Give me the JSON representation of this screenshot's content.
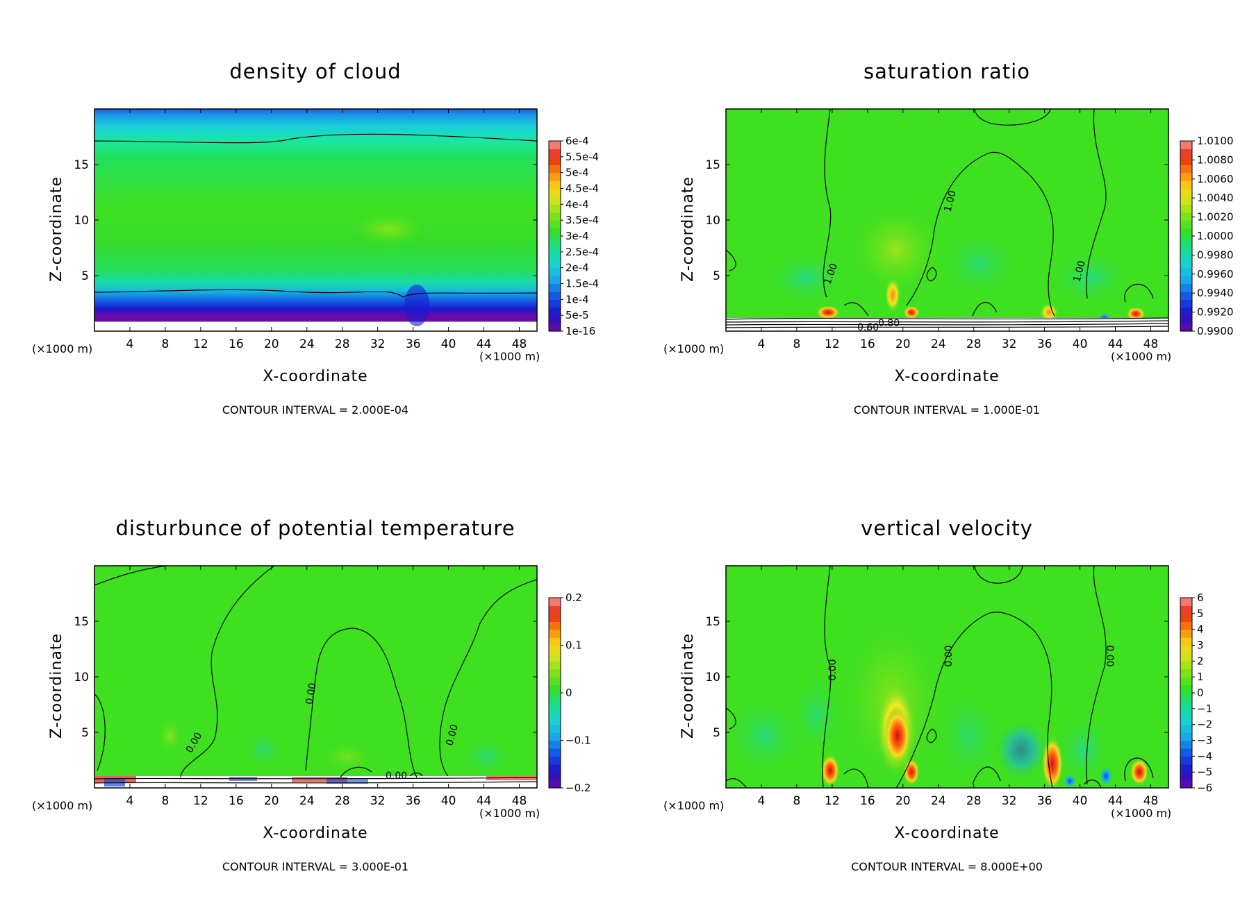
{
  "figure": {
    "panels": [
      {
        "title": "density of cloud",
        "xlabel": "X-coordinate",
        "ylabel": "Z-coordinate",
        "x_unit_left": "(×1000 m)",
        "x_unit_right": "(×1000 m)",
        "contour_interval": "CONTOUR INTERVAL = 2.000E-04",
        "colorbar_labels": [
          "6e-4",
          "5.5e-4",
          "5e-4",
          "4.5e-4",
          "4e-4",
          "3.5e-4",
          "3e-4",
          "2.5e-4",
          "2e-4",
          "1.5e-4",
          "1e-4",
          "5e-5",
          "1e-16"
        ],
        "contour_labels": []
      },
      {
        "title": "saturation ratio",
        "xlabel": "X-coordinate",
        "ylabel": "Z-coordinate",
        "x_unit_left": "(×1000 m)",
        "x_unit_right": "(×1000 m)",
        "contour_interval": "CONTOUR INTERVAL = 1.000E-01",
        "colorbar_labels": [
          "1.0100",
          "1.0080",
          "1.0060",
          "1.0040",
          "1.0020",
          "1.0000",
          "0.9980",
          "0.9960",
          "0.9940",
          "0.9920",
          "0.9900"
        ],
        "contour_labels": [
          "1.00",
          "1.00",
          "1.00",
          "0.60",
          "0.80"
        ]
      },
      {
        "title": "disturbunce of potential temperature",
        "xlabel": "X-coordinate",
        "ylabel": "Z-coordinate",
        "x_unit_left": "(×1000 m)",
        "x_unit_right": "(×1000 m)",
        "contour_interval": "CONTOUR INTERVAL = 3.000E-01",
        "colorbar_labels": [
          "0.2",
          "0.1",
          "0",
          "−0.1",
          "−0.2"
        ],
        "contour_labels": [
          "0.00",
          "0.00",
          "0.00",
          "0.00"
        ]
      },
      {
        "title": "vertical velocity",
        "xlabel": "X-coordinate",
        "ylabel": "Z-coordinate",
        "x_unit_left": "(×1000 m)",
        "x_unit_right": "(×1000 m)",
        "contour_interval": "CONTOUR INTERVAL = 8.000E+00",
        "colorbar_labels": [
          "6",
          "5",
          "4",
          "3",
          "2",
          "1",
          "0",
          "−1",
          "−2",
          "−3",
          "−4",
          "−5",
          "−6"
        ],
        "contour_labels": [
          "0.00",
          "0.00",
          "0.00"
        ]
      }
    ]
  },
  "chart_data": [
    {
      "type": "heatmap",
      "title": "density of cloud",
      "xlabel": "X-coordinate",
      "ylabel": "Z-coordinate",
      "x_ticks": [
        4,
        8,
        12,
        16,
        20,
        24,
        28,
        32,
        36,
        40,
        44,
        48
      ],
      "y_ticks": [
        5,
        10,
        15
      ],
      "xlim": [
        0,
        50
      ],
      "ylim": [
        0,
        20
      ],
      "colorbar": {
        "labels": [
          "6e-4",
          "5.5e-4",
          "5e-4",
          "4.5e-4",
          "4e-4",
          "3.5e-4",
          "3e-4",
          "2.5e-4",
          "2e-4",
          "1.5e-4",
          "1e-4",
          "5e-5",
          "1e-16"
        ],
        "min": 1e-16,
        "max": 0.0006
      },
      "profile_by_height": {
        "z": [
          1,
          2,
          3,
          4,
          6,
          10,
          14,
          17,
          18.5,
          20
        ],
        "value": [
          1e-16,
          0.0001,
          0.0002,
          0.00025,
          0.0003,
          0.00033,
          0.0003,
          0.00025,
          0.00015,
          0.0001
        ]
      },
      "contour_interval": "CONTOUR INTERVAL = 2.000E-04"
    },
    {
      "type": "heatmap",
      "title": "saturation ratio",
      "xlabel": "X-coordinate",
      "ylabel": "Z-coordinate",
      "x_ticks": [
        4,
        8,
        12,
        16,
        20,
        24,
        28,
        32,
        36,
        40,
        44,
        48
      ],
      "y_ticks": [
        5,
        10,
        15
      ],
      "xlim": [
        0,
        50
      ],
      "ylim": [
        0,
        20
      ],
      "colorbar": {
        "labels": [
          "1.0100",
          "1.0080",
          "1.0060",
          "1.0040",
          "1.0020",
          "1.0000",
          "0.9980",
          "0.9960",
          "0.9940",
          "0.9920",
          "0.9900"
        ],
        "min": 0.99,
        "max": 1.01
      },
      "hotspots": [
        {
          "x": 12,
          "z": 1.5,
          "value": 1.008
        },
        {
          "x": 18,
          "z": 3,
          "value": 1.004
        },
        {
          "x": 20.5,
          "z": 1.5,
          "value": 1.006
        },
        {
          "x": 36.5,
          "z": 1.5,
          "value": 1.006
        },
        {
          "x": 46,
          "z": 1.2,
          "value": 1.006
        }
      ],
      "contour_interval": "CONTOUR INTERVAL = 1.000E-01"
    },
    {
      "type": "heatmap",
      "title": "disturbunce of potential temperature",
      "xlabel": "X-coordinate",
      "ylabel": "Z-coordinate",
      "x_ticks": [
        4,
        8,
        12,
        16,
        20,
        24,
        28,
        32,
        36,
        40,
        44,
        48
      ],
      "y_ticks": [
        5,
        10,
        15
      ],
      "xlim": [
        0,
        50
      ],
      "ylim": [
        0,
        20
      ],
      "colorbar": {
        "labels": [
          "0.2",
          "0.1",
          "0",
          "−0.1",
          "−0.2"
        ],
        "min": -0.2,
        "max": 0.2
      },
      "contour_interval": "CONTOUR INTERVAL = 3.000E-01"
    },
    {
      "type": "heatmap",
      "title": "vertical velocity",
      "xlabel": "X-coordinate",
      "ylabel": "Z-coordinate",
      "x_ticks": [
        4,
        8,
        12,
        16,
        20,
        24,
        28,
        32,
        36,
        40,
        44,
        48
      ],
      "y_ticks": [
        5,
        10,
        15
      ],
      "xlim": [
        0,
        50
      ],
      "ylim": [
        0,
        20
      ],
      "colorbar": {
        "labels": [
          "6",
          "5",
          "4",
          "3",
          "2",
          "1",
          "0",
          "−1",
          "−2",
          "−3",
          "−4",
          "−5",
          "−6"
        ],
        "min": -6,
        "max": 6
      },
      "hotspots": [
        {
          "x": 11.5,
          "z": 1.5,
          "value": 4
        },
        {
          "x": 18.5,
          "z": 4,
          "value": 5
        },
        {
          "x": 20.5,
          "z": 1.5,
          "value": 4
        },
        {
          "x": 37,
          "z": 2.5,
          "value": 4
        },
        {
          "x": 46,
          "z": 1.5,
          "value": 4
        },
        {
          "x": 42.5,
          "z": 1.2,
          "value": -4
        }
      ],
      "contour_interval": "CONTOUR INTERVAL = 8.000E+00"
    }
  ]
}
